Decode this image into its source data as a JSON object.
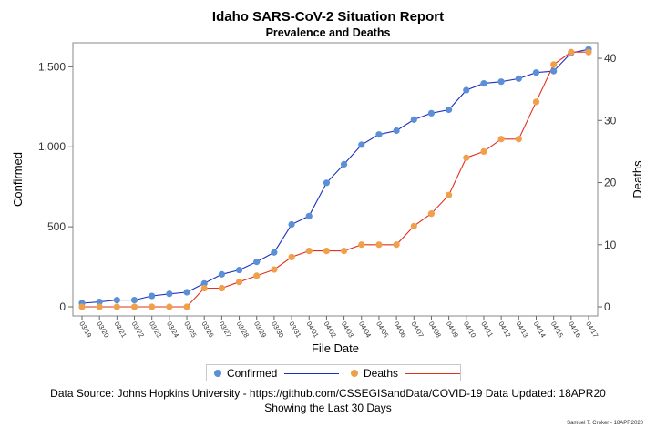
{
  "title": "Idaho SARS-CoV-2 Situation Report",
  "subtitle": "Prevalence and Deaths",
  "footer": {
    "source": "Data Source: Johns Hopkins University - https://github.com/CSSEGISandData/COVID-19 Data Updated: 18APR20",
    "range": "Showing the Last 30 Days"
  },
  "credit": "Samuel T. Croker - 18APR2020",
  "legend": {
    "confirmed_label": "Confirmed",
    "deaths_label": "Deaths"
  },
  "colors": {
    "confirmed_marker": "#5b8fd6",
    "confirmed_line": "#1c2fc4",
    "deaths_marker": "#f0a04a",
    "deaths_line": "#e0301e"
  },
  "chart_data": {
    "type": "line",
    "xlabel": "File Date",
    "ylabel_left": "Confirmed",
    "ylabel_right": "Deaths",
    "ylim_left": [
      0,
      1650
    ],
    "ylim_right": [
      0,
      42.5
    ],
    "yticks_left": [
      0,
      500,
      1000,
      1500
    ],
    "yticks_right": [
      0,
      10,
      20,
      30,
      40
    ],
    "grid": false,
    "legend_position": "bottom",
    "categories": [
      "03/19",
      "03/20",
      "03/21",
      "03/22",
      "03/23",
      "03/24",
      "03/25",
      "03/26",
      "03/27",
      "03/28",
      "03/29",
      "03/30",
      "03/31",
      "04/01",
      "04/02",
      "04/03",
      "04/04",
      "04/05",
      "04/06",
      "04/07",
      "04/08",
      "04/09",
      "04/10",
      "04/11",
      "04/12",
      "04/13",
      "04/14",
      "04/15",
      "04/16",
      "04/17"
    ],
    "series": [
      {
        "name": "Confirmed",
        "axis": "left",
        "values": [
          23,
          31,
          42,
          42,
          68,
          81,
          91,
          146,
          203,
          230,
          281,
          340,
          515,
          567,
          775,
          891,
          1013,
          1077,
          1101,
          1170,
          1210,
          1232,
          1354,
          1396,
          1407,
          1426,
          1464,
          1473,
          1587,
          1609
        ]
      },
      {
        "name": "Deaths",
        "axis": "right",
        "values": [
          0,
          0,
          0,
          0,
          0,
          0,
          0,
          3,
          3,
          4,
          5,
          6,
          8,
          9,
          9,
          9,
          10,
          10,
          10,
          13,
          15,
          18,
          24,
          25,
          27,
          27,
          33,
          39,
          41,
          41
        ]
      }
    ]
  }
}
